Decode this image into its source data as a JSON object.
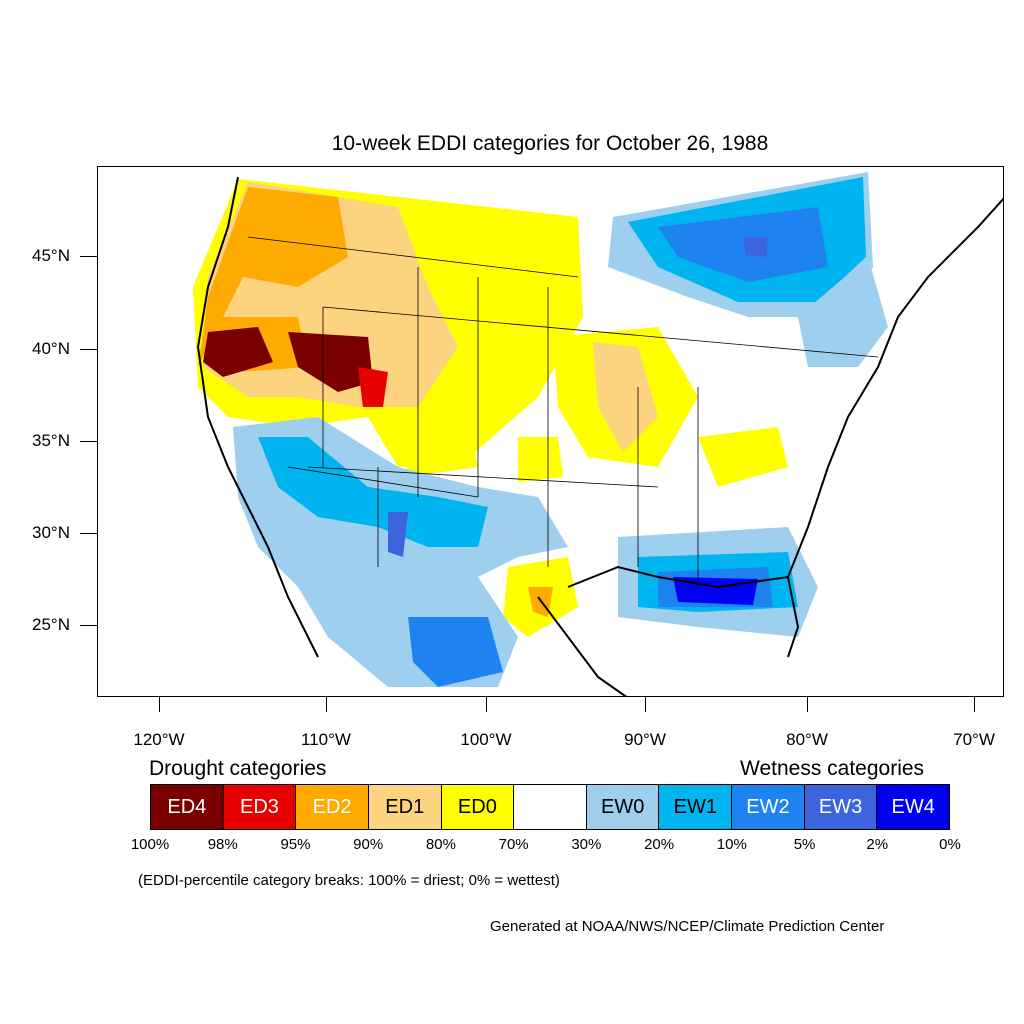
{
  "title": "10-week EDDI categories for October 26, 1988",
  "axes": {
    "lat_labels": [
      "45°N",
      "40°N",
      "35°N",
      "30°N",
      "25°N"
    ],
    "lon_labels": [
      "120°W",
      "110°W",
      "100°W",
      "90°W",
      "80°W",
      "70°W"
    ]
  },
  "legend": {
    "drought_title": "Drought categories",
    "wetness_title": "Wetness categories",
    "categories": [
      {
        "label": "ED4",
        "color": "#7a0000",
        "text_color": "#ffffff"
      },
      {
        "label": "ED3",
        "color": "#e60000",
        "text_color": "#ffffff"
      },
      {
        "label": "ED2",
        "color": "#ffaa00",
        "text_color": "#ffffff"
      },
      {
        "label": "ED1",
        "color": "#fcd37f",
        "text_color": "#000000"
      },
      {
        "label": "ED0",
        "color": "#ffff00",
        "text_color": "#000000"
      },
      {
        "label": "",
        "color": "#ffffff",
        "text_color": "#000000"
      },
      {
        "label": "EW0",
        "color": "#9ecfef",
        "text_color": "#000000"
      },
      {
        "label": "EW1",
        "color": "#00b4f0",
        "text_color": "#000000"
      },
      {
        "label": "EW2",
        "color": "#1e82f0",
        "text_color": "#ffffff"
      },
      {
        "label": "EW3",
        "color": "#3c64dc",
        "text_color": "#ffffff"
      },
      {
        "label": "EW4",
        "color": "#0000f0",
        "text_color": "#ffffff"
      }
    ],
    "breaks": [
      "100%",
      "98%",
      "95%",
      "90%",
      "80%",
      "70%",
      "30%",
      "20%",
      "10%",
      "5%",
      "2%",
      "0%"
    ]
  },
  "note": "(EDDI-percentile category breaks: 100% = driest; 0% = wettest)",
  "credit": "Generated at NOAA/NWS/NCEP/Climate Prediction Center"
}
